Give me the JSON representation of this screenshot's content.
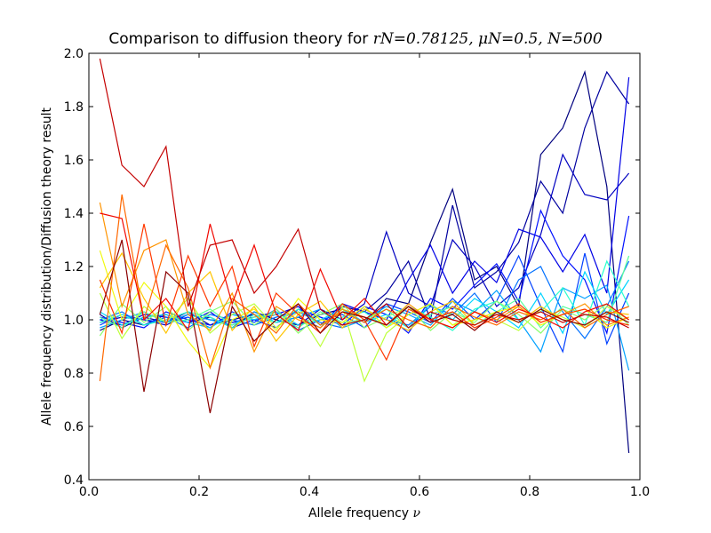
{
  "chart_data": {
    "type": "line",
    "title_prefix": "Comparison to diffusion theory for ",
    "title_params": "rN=0.78125, μN=0.5, N=500",
    "xlabel_text": "Allele frequency ",
    "xlabel_symbol": "ν",
    "ylabel": "Allele frequency distribution/Diffusion theory result",
    "xlim": [
      0.0,
      1.0
    ],
    "ylim": [
      0.4,
      2.0
    ],
    "xticks": [
      "0.0",
      "0.2",
      "0.4",
      "0.6",
      "0.8",
      "1.0"
    ],
    "yticks": [
      "0.4",
      "0.6",
      "0.8",
      "1.0",
      "1.2",
      "1.4",
      "1.6",
      "1.8",
      "2.0"
    ],
    "grid": false,
    "legend": "none",
    "colormap": "jet",
    "x": [
      0.02,
      0.06,
      0.1,
      0.14,
      0.18,
      0.22,
      0.26,
      0.3,
      0.34,
      0.38,
      0.42,
      0.46,
      0.5,
      0.54,
      0.58,
      0.62,
      0.66,
      0.7,
      0.74,
      0.78,
      0.82,
      0.86,
      0.9,
      0.94,
      0.98
    ],
    "series": [
      {
        "color": "#00007f",
        "values": [
          0.96,
          1.0,
          0.98,
          1.02,
          0.99,
          1.01,
          0.97,
          1.03,
          1.0,
          0.98,
          1.02,
          1.04,
          0.99,
          1.08,
          1.06,
          1.29,
          1.49,
          1.15,
          1.2,
          1.05,
          1.62,
          1.72,
          1.93,
          1.5,
          0.5
        ]
      },
      {
        "color": "#00009f",
        "values": [
          1.02,
          0.97,
          1.01,
          0.99,
          1.03,
          0.98,
          1.0,
          1.02,
          0.99,
          1.01,
          0.97,
          1.05,
          1.03,
          1.1,
          1.22,
          1.0,
          1.43,
          1.12,
          1.18,
          1.29,
          1.52,
          1.4,
          1.72,
          1.93,
          1.81
        ]
      },
      {
        "color": "#0000c0",
        "values": [
          0.99,
          1.01,
          1.0,
          0.98,
          1.02,
          1.0,
          0.99,
          1.01,
          1.03,
          0.98,
          1.04,
          1.0,
          1.06,
          1.33,
          1.1,
          1.05,
          1.3,
          1.2,
          1.05,
          1.12,
          1.32,
          1.62,
          1.47,
          1.45,
          1.55
        ]
      },
      {
        "color": "#0000e5",
        "values": [
          1.0,
          0.98,
          1.02,
          1.01,
          0.99,
          1.03,
          0.97,
          1.0,
          1.02,
          1.05,
          0.98,
          1.06,
          1.03,
          1.0,
          1.15,
          1.28,
          1.1,
          1.22,
          1.14,
          1.34,
          1.31,
          1.18,
          1.32,
          1.1,
          1.91
        ]
      },
      {
        "color": "#0010ff",
        "values": [
          1.01,
          0.99,
          0.97,
          1.03,
          1.0,
          0.98,
          1.02,
          1.0,
          0.97,
          1.04,
          1.01,
          0.98,
          1.05,
          1.02,
          0.95,
          1.08,
          1.04,
          1.13,
          1.21,
          1.07,
          1.41,
          1.24,
          1.15,
          0.95,
          1.39
        ]
      },
      {
        "color": "#0040ff",
        "values": [
          0.98,
          1.02,
          1.0,
          0.99,
          1.01,
          0.97,
          1.03,
          0.99,
          1.04,
          0.96,
          1.0,
          1.02,
          0.97,
          1.06,
          1.03,
          0.99,
          1.08,
          1.0,
          1.07,
          1.24,
          1.05,
          0.88,
          1.25,
          0.91,
          1.1
        ]
      },
      {
        "color": "#0070ff",
        "values": [
          1.0,
          1.03,
          0.98,
          1.01,
          0.97,
          1.02,
          1.0,
          0.98,
          1.01,
          1.03,
          0.99,
          0.97,
          1.04,
          1.0,
          0.98,
          1.05,
          1.02,
          1.1,
          0.99,
          1.15,
          1.2,
          1.03,
          0.93,
          1.05,
          1.22
        ]
      },
      {
        "color": "#00a0ff",
        "values": [
          0.97,
          1.0,
          1.03,
          0.99,
          1.02,
          1.0,
          0.98,
          1.03,
          0.99,
          1.01,
          1.04,
          0.97,
          1.0,
          1.05,
          1.02,
          0.98,
          1.07,
          1.03,
          1.11,
          1.0,
          0.88,
          1.12,
          1.08,
          1.13,
          0.81
        ]
      },
      {
        "color": "#00d4ff",
        "values": [
          1.03,
          0.98,
          1.01,
          1.02,
          0.99,
          0.97,
          1.02,
          1.0,
          1.03,
          0.98,
          1.0,
          1.04,
          0.99,
          1.02,
          0.97,
          1.06,
          1.0,
          1.08,
          1.03,
          0.97,
          1.1,
          0.95,
          1.18,
          1.02,
          1.15
        ]
      },
      {
        "color": "#29ffce",
        "values": [
          0.99,
          1.02,
          0.98,
          1.0,
          1.03,
          1.01,
          0.97,
          1.02,
          0.99,
          1.04,
          0.98,
          1.01,
          1.03,
          0.97,
          1.05,
          1.01,
          0.96,
          1.04,
          1.07,
          1.0,
          1.03,
          1.12,
          0.98,
          1.22,
          1.05
        ]
      },
      {
        "color": "#5aff9d",
        "values": [
          1.01,
          0.97,
          1.03,
          0.99,
          1.0,
          1.04,
          0.98,
          1.01,
          1.02,
          0.97,
          1.03,
          0.99,
          1.0,
          1.04,
          0.97,
          1.02,
          1.05,
          0.98,
          1.03,
          1.08,
          0.97,
          1.05,
          1.02,
          0.99,
          1.24
        ]
      },
      {
        "color": "#8aff6d",
        "values": [
          0.94,
          1.06,
          0.99,
          1.05,
          0.96,
          1.03,
          1.07,
          0.98,
          1.04,
          0.95,
          1.02,
          1.06,
          0.97,
          1.01,
          1.05,
          0.96,
          1.03,
          0.99,
          1.07,
          1.02,
          0.95,
          1.04,
          1.0,
          1.06,
          0.98
        ]
      },
      {
        "color": "#bdff3a",
        "values": [
          1.1,
          0.93,
          1.05,
          0.99,
          1.08,
          0.95,
          1.02,
          1.06,
          0.97,
          1.03,
          0.9,
          1.05,
          0.77,
          0.95,
          1.02,
          1.06,
          0.98,
          1.03,
          1.0,
          0.96,
          1.04,
          1.01,
          0.97,
          1.05,
          1.0
        ]
      },
      {
        "color": "#f0f90d",
        "values": [
          1.26,
          1.0,
          1.14,
          1.05,
          0.92,
          0.82,
          1.0,
          1.04,
          0.96,
          1.08,
          1.0,
          0.99,
          1.05,
          0.97,
          1.02,
          1.06,
          0.98,
          1.0,
          1.03,
          1.05,
          0.98,
          1.02,
          1.04,
          0.97,
          1.01
        ]
      },
      {
        "color": "#ffc400",
        "values": [
          1.12,
          1.25,
          1.08,
          0.95,
          1.1,
          1.18,
          0.96,
          1.05,
          0.92,
          1.02,
          1.07,
          0.97,
          1.04,
          1.0,
          0.96,
          1.03,
          1.07,
          0.98,
          1.02,
          0.99,
          1.05,
          1.0,
          0.98,
          1.03,
          1.02
        ]
      },
      {
        "color": "#ff9400",
        "values": [
          1.44,
          1.05,
          1.26,
          1.3,
          1.02,
          0.96,
          1.1,
          0.88,
          1.05,
          1.0,
          0.97,
          1.04,
          1.01,
          0.98,
          1.06,
          1.0,
          0.97,
          1.03,
          1.0,
          1.05,
          0.99,
          1.02,
          1.06,
          0.98,
          1.01
        ]
      },
      {
        "color": "#ff6800",
        "values": [
          0.77,
          1.47,
          1.0,
          1.28,
          1.12,
          0.82,
          1.08,
          1.02,
          0.95,
          1.06,
          0.98,
          1.03,
          0.99,
          1.04,
          1.0,
          0.97,
          1.05,
          1.01,
          0.98,
          1.03,
          1.0,
          1.04,
          0.97,
          1.02,
          1.05
        ]
      },
      {
        "color": "#ff3800",
        "values": [
          1.15,
          0.95,
          1.36,
          0.98,
          1.24,
          1.05,
          1.2,
          0.9,
          1.1,
          1.02,
          0.95,
          1.06,
          1.0,
          0.85,
          1.04,
          1.0,
          1.03,
          0.97,
          1.01,
          1.06,
          0.99,
          1.02,
          1.04,
          1.0,
          0.98
        ]
      },
      {
        "color": "#f10700",
        "values": [
          1.4,
          1.38,
          1.0,
          1.08,
          0.96,
          1.36,
          1.06,
          1.28,
          1.02,
          0.96,
          1.19,
          1.0,
          1.08,
          0.98,
          1.05,
          1.0,
          0.97,
          1.03,
          0.99,
          1.04,
          1.01,
          0.97,
          1.03,
          1.06,
          1.0
        ]
      },
      {
        "color": "#c40000",
        "values": [
          1.98,
          1.58,
          1.5,
          1.65,
          1.05,
          1.28,
          1.3,
          1.1,
          1.2,
          1.34,
          1.04,
          0.98,
          1.0,
          1.06,
          0.97,
          1.03,
          1.0,
          0.98,
          1.02,
          1.0,
          1.03,
          0.99,
          1.02,
          1.01,
          0.97
        ]
      },
      {
        "color": "#8b0000",
        "values": [
          1.02,
          1.3,
          0.73,
          1.18,
          1.1,
          0.65,
          1.05,
          0.92,
          1.0,
          1.06,
          0.95,
          1.03,
          1.01,
          0.98,
          1.05,
          0.99,
          1.02,
          0.96,
          1.03,
          0.99,
          1.04,
          1.0,
          0.98,
          1.03,
          0.99
        ]
      }
    ]
  }
}
